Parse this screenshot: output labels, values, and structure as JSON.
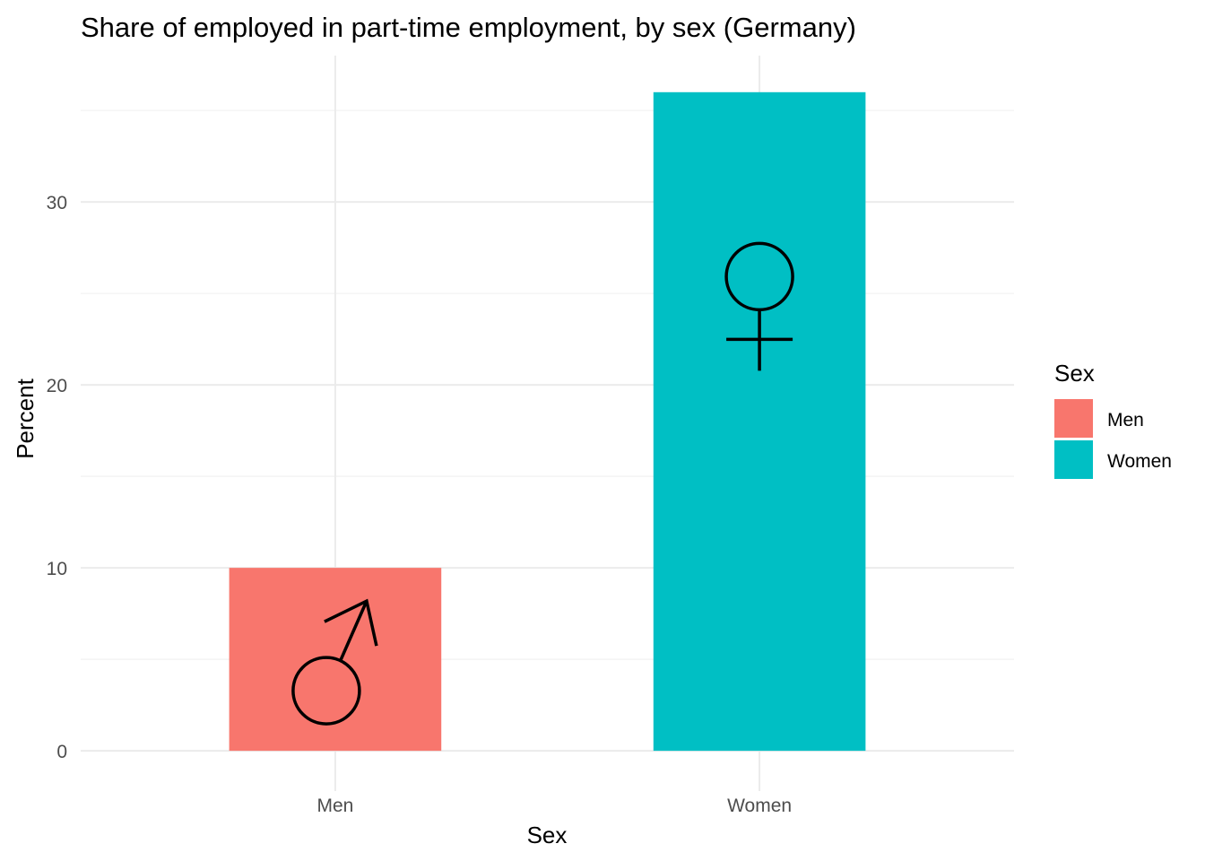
{
  "chart_data": {
    "type": "bar",
    "title": "Share of employed in part-time employment, by sex (Germany)",
    "xlabel": "Sex",
    "ylabel": "Percent",
    "categories": [
      "Men",
      "Women"
    ],
    "values": [
      10,
      36
    ],
    "colors": [
      "#F8766D",
      "#00BFC4"
    ],
    "symbols": [
      "male-symbol-icon",
      "female-symbol-icon"
    ],
    "ylim": [
      -2.2,
      38
    ],
    "y_ticks": [
      0,
      10,
      20,
      30
    ],
    "y_minor_ticks": [
      5,
      15,
      25,
      35
    ],
    "grid": true,
    "legend": {
      "title": "Sex",
      "position": "right",
      "entries": [
        "Men",
        "Women"
      ]
    }
  }
}
